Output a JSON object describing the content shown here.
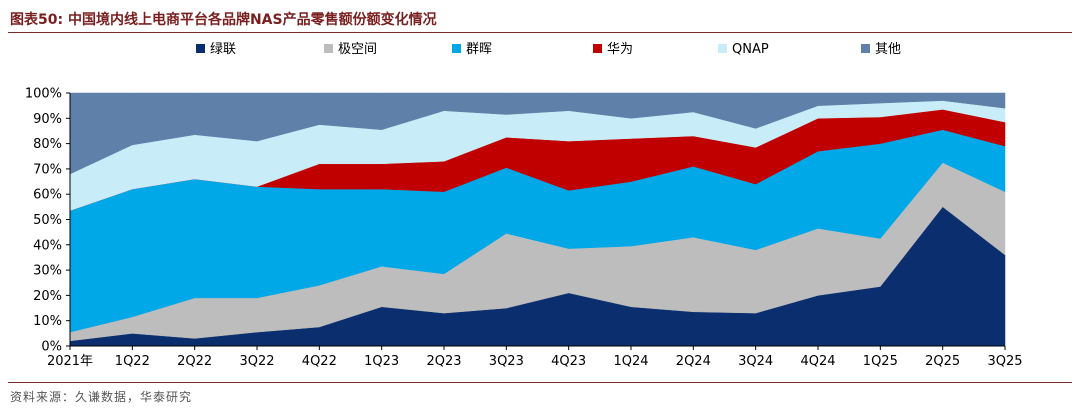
{
  "header": {
    "title": "图表50:  中国境内线上电商平台各品牌NAS产品零售额份额变化情况"
  },
  "footer": {
    "source": "资料来源：久谦数据，华泰研究"
  },
  "chart_data": {
    "type": "area",
    "stacked": true,
    "categories": [
      "2021年",
      "",
      "1Q22",
      "",
      "2Q22",
      "",
      "3Q22",
      "",
      "4Q22",
      "",
      "1Q23",
      "",
      "2Q23",
      "",
      "3Q23",
      "",
      "4Q23",
      "",
      "1Q24",
      "",
      "2Q24",
      "",
      "3Q24",
      "",
      "4Q24",
      "",
      "1Q25",
      "",
      "2Q25",
      "",
      "3Q25"
    ],
    "x": [
      0,
      1,
      2,
      3,
      4,
      5,
      6,
      7,
      8,
      9,
      10,
      11,
      12,
      13,
      14,
      15
    ],
    "x_tick_labels": [
      "2021年",
      "1Q22",
      "2Q22",
      "3Q22",
      "4Q22",
      "1Q23",
      "2Q23",
      "3Q23",
      "4Q23",
      "1Q24",
      "2Q24",
      "3Q24",
      "4Q24",
      "1Q25",
      "2Q25",
      "3Q25"
    ],
    "y_tick_labels": [
      "0%",
      "10%",
      "20%",
      "30%",
      "40%",
      "50%",
      "60%",
      "70%",
      "80%",
      "90%",
      "100%"
    ],
    "ylim": [
      0,
      100
    ],
    "legend_position": "top",
    "series": [
      {
        "name": "绿联",
        "color": "#0b2f6e",
        "values": [
          2,
          5,
          3,
          5.5,
          7.5,
          15.5,
          13,
          15,
          21,
          15.5,
          13.5,
          13,
          20,
          23.5,
          55,
          36
        ]
      },
      {
        "name": "极空间",
        "color": "#bdbdbd",
        "values": [
          3.5,
          6.5,
          16,
          13.5,
          16.5,
          16,
          15.5,
          29.5,
          17.5,
          24,
          29.5,
          25,
          26.5,
          19,
          17.5,
          25
        ]
      },
      {
        "name": "群晖",
        "color": "#00a8e8",
        "values": [
          48,
          50.5,
          47,
          44,
          38,
          30.5,
          32.5,
          26,
          23,
          25.5,
          28,
          26,
          30.5,
          37.5,
          13,
          18
        ]
      },
      {
        "name": "华为",
        "color": "#c00000",
        "values": [
          0,
          0,
          0,
          0,
          10,
          10,
          12,
          12,
          19.5,
          17,
          12,
          14.5,
          13,
          10.5,
          8,
          9.5
        ]
      },
      {
        "name": "QNAP",
        "color": "#c9ecf9",
        "values": [
          14.5,
          17.5,
          17.5,
          18,
          15.5,
          13.5,
          20,
          9,
          12,
          8,
          9.5,
          7.5,
          5,
          5.5,
          3.5,
          5.5
        ]
      },
      {
        "name": "其他",
        "color": "#5f80a8",
        "values": [
          32,
          20.5,
          16.5,
          19,
          12.5,
          14.5,
          7,
          8.5,
          7,
          10,
          7.5,
          14,
          5,
          4,
          3,
          6
        ]
      }
    ]
  }
}
